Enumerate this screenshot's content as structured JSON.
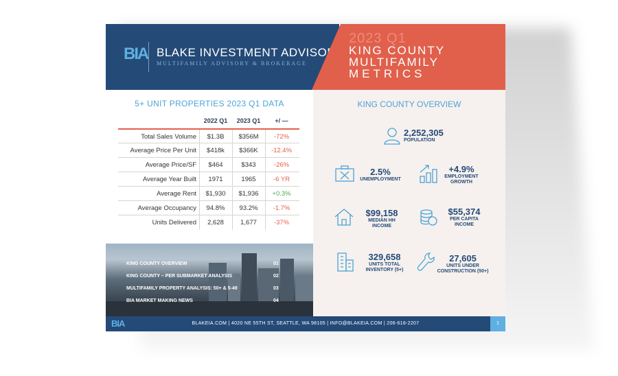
{
  "header": {
    "logo": "BIA",
    "brand_name": "BLAKE INVESTMENT ADVISORS",
    "tagline": "MULTIFAMILY ADVISORY & BROKERAGE",
    "period": "2023 Q1",
    "title_lines": [
      "KING COUNTY",
      "MULTIFAMILY",
      "METRICS"
    ]
  },
  "table": {
    "title": "5+ UNIT PROPERTIES 2023 Q1 DATA",
    "columns": [
      "2022 Q1",
      "2023 Q1",
      "+/ —"
    ],
    "rows": [
      {
        "label": "Total Sales Volume",
        "prev": "$1.3B",
        "curr": "$356M",
        "change": "-72%"
      },
      {
        "label": "Average Price Per Unit",
        "prev": "$418k",
        "curr": "$366K",
        "change": "-12.4%"
      },
      {
        "label": "Average Price/SF",
        "prev": "$464",
        "curr": "$343",
        "change": "-26%"
      },
      {
        "label": "Average Year Built",
        "prev": "1971",
        "curr": "1965",
        "change": "-6 YR"
      },
      {
        "label": "Average Rent",
        "prev": "$1,930",
        "curr": "$1,936",
        "change": "+0.3%"
      },
      {
        "label": "Average Occupancy",
        "prev": "94.8%",
        "curr": "93.2%",
        "change": "-1.7%"
      },
      {
        "label": "Units Delivered",
        "prev": "2,628",
        "curr": "1,677",
        "change": "-37%"
      }
    ]
  },
  "toc": [
    {
      "label": "KING COUNTY OVERVIEW",
      "page": "01"
    },
    {
      "label": "KING COUNTY – PER SUBMARKET ANALYSIS",
      "page": "02"
    },
    {
      "label": "MULTIFAMILY PROPERTY ANALYSIS: 50+ & 5-49",
      "page": "03"
    },
    {
      "label": "BIA MARKET MAKING NEWS",
      "page": "04"
    }
  ],
  "overview": {
    "title": "KING COUNTY OVERVIEW",
    "population": {
      "value": "2,252,305",
      "label": "POPULATION"
    },
    "unemployment": {
      "value": "2.5%",
      "label": "UNEMPLOYMENT"
    },
    "employment_growth": {
      "value": "+4.9%",
      "label1": "EMPLOYMENT",
      "label2": "GROWTH"
    },
    "median_income": {
      "value": "$99,158",
      "label1": "MEDIAN HH",
      "label2": "INCOME"
    },
    "per_capita": {
      "value": "$55,374",
      "label1": "PER CAPITA",
      "label2": "INCOME"
    },
    "inventory": {
      "value": "329,658",
      "label1": "UNITS TOTAL",
      "label2": "INVENTORY (5+)"
    },
    "construction": {
      "value": "27,605",
      "label1": "UNITS UNDER",
      "label2": "CONSTRUCTION (50+)"
    }
  },
  "footer": {
    "logo": "BIA",
    "contact": "BLAKEIA.COM | 4020 NE 55TH ST, SEATTLE, WA 98105 | INFO@BLAKEIA.COM | 206-618-2207",
    "page": "1"
  },
  "colors": {
    "navy": "#244a78",
    "coral": "#e0604c",
    "sky": "#5fb0e0"
  }
}
